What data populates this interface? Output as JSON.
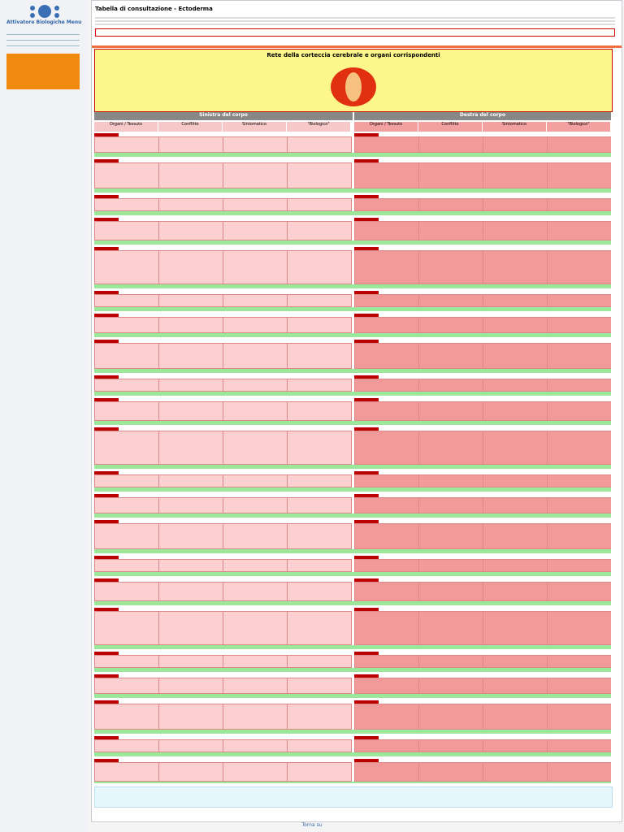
{
  "sidebar": {
    "site_name": "Attivatore Biologiche Menu"
  },
  "header": {
    "title": "Tabella di consultazione - Ectoderma"
  },
  "diagram": {
    "title": "Rete della corteccia cerebrale e organi corrispondenti"
  },
  "table": {
    "left_header": "Sinistra del corpo",
    "right_header": "Destra del corpo",
    "columns": [
      "Organi / Tessuto",
      "Conflitto",
      "Sintomatico",
      "\"Biologico\""
    ]
  },
  "footer": {
    "text": "Torna su"
  }
}
